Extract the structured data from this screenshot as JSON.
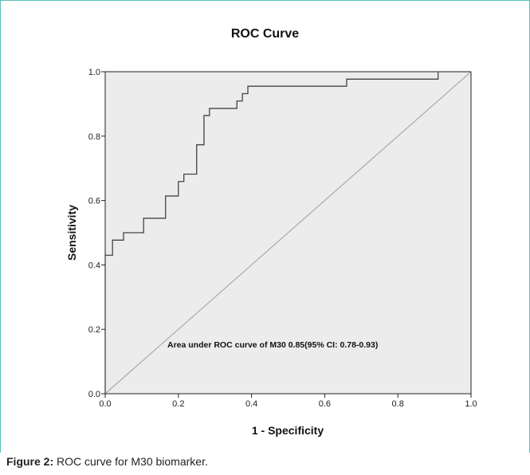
{
  "chart_data": {
    "type": "line",
    "title": "ROC Curve",
    "xlabel": "1 - Specificity",
    "ylabel": "Sensitivity",
    "xlim": [
      0,
      1
    ],
    "ylim": [
      0,
      1
    ],
    "x_ticks": [
      "0.0",
      "0.2",
      "0.4",
      "0.6",
      "0.8",
      "1.0"
    ],
    "y_ticks": [
      "0.0",
      "0.2",
      "0.4",
      "0.6",
      "0.8",
      "1.0"
    ],
    "grid": false,
    "annotation": "Area under ROC curve of M30 0.85(95% CI: 0.78-0.93)",
    "series": [
      {
        "type": "step",
        "color": "#444444",
        "points": [
          [
            0.0,
            0.0
          ],
          [
            0.0,
            0.43
          ],
          [
            0.02,
            0.43
          ],
          [
            0.02,
            0.477
          ],
          [
            0.05,
            0.477
          ],
          [
            0.05,
            0.5
          ],
          [
            0.105,
            0.5
          ],
          [
            0.105,
            0.545
          ],
          [
            0.165,
            0.545
          ],
          [
            0.165,
            0.614
          ],
          [
            0.2,
            0.614
          ],
          [
            0.2,
            0.659
          ],
          [
            0.215,
            0.659
          ],
          [
            0.215,
            0.682
          ],
          [
            0.25,
            0.682
          ],
          [
            0.25,
            0.773
          ],
          [
            0.27,
            0.773
          ],
          [
            0.27,
            0.864
          ],
          [
            0.285,
            0.864
          ],
          [
            0.285,
            0.886
          ],
          [
            0.36,
            0.886
          ],
          [
            0.36,
            0.909
          ],
          [
            0.375,
            0.909
          ],
          [
            0.375,
            0.932
          ],
          [
            0.39,
            0.932
          ],
          [
            0.39,
            0.955
          ],
          [
            0.66,
            0.955
          ],
          [
            0.66,
            0.977
          ],
          [
            0.91,
            0.977
          ],
          [
            0.91,
            1.0
          ],
          [
            1.0,
            1.0
          ]
        ]
      },
      {
        "type": "reference",
        "color": "#aaaaaa",
        "points": [
          [
            0,
            0
          ],
          [
            1,
            1
          ]
        ]
      }
    ]
  },
  "figure": {
    "caption_label": "Figure 2:",
    "caption_text": " ROC curve for M30 biomarker."
  },
  "colors": {
    "plot_background": "#ececec",
    "frame_border": "#5bbfb5"
  }
}
